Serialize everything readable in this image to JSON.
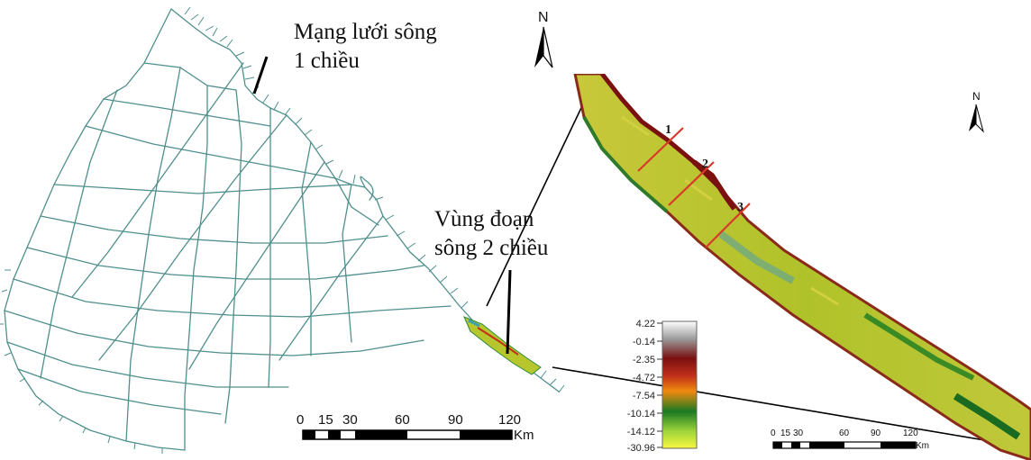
{
  "labels": {
    "one_dim_line1": "Mạng lưới sông",
    "one_dim_line2": "1 chiều",
    "two_dim_line1": "Vùng đoạn",
    "two_dim_line2": "sông 2 chiều"
  },
  "north_arrow": {
    "label": "N",
    "icon": "north-arrow-icon"
  },
  "scale_bar_main": {
    "ticks": [
      "0",
      "15",
      "30",
      "60",
      "90",
      "120"
    ],
    "unit": "Km"
  },
  "scale_bar_inset": {
    "ticks": [
      "0",
      "15",
      "30",
      "60",
      "90",
      "120"
    ],
    "unit": "Km"
  },
  "cross_sections": [
    "1",
    "2",
    "3"
  ],
  "legend": {
    "values": [
      "4.22",
      "-0.14",
      "-2.35",
      "-4.72",
      "-7.54",
      "-10.14",
      "-14.12",
      "-30.96"
    ],
    "colors": [
      "#ffffff",
      "#a0a0a0",
      "#7a1010",
      "#c0301a",
      "#f08a10",
      "#1a8a2a",
      "#9ad23a",
      "#f8f840"
    ]
  },
  "colors": {
    "river_network": "#4f8f8c",
    "riverbed_fill": "#b8c62e",
    "bank_dark": "#8a2a1a",
    "section_line": "#d83a2a"
  }
}
